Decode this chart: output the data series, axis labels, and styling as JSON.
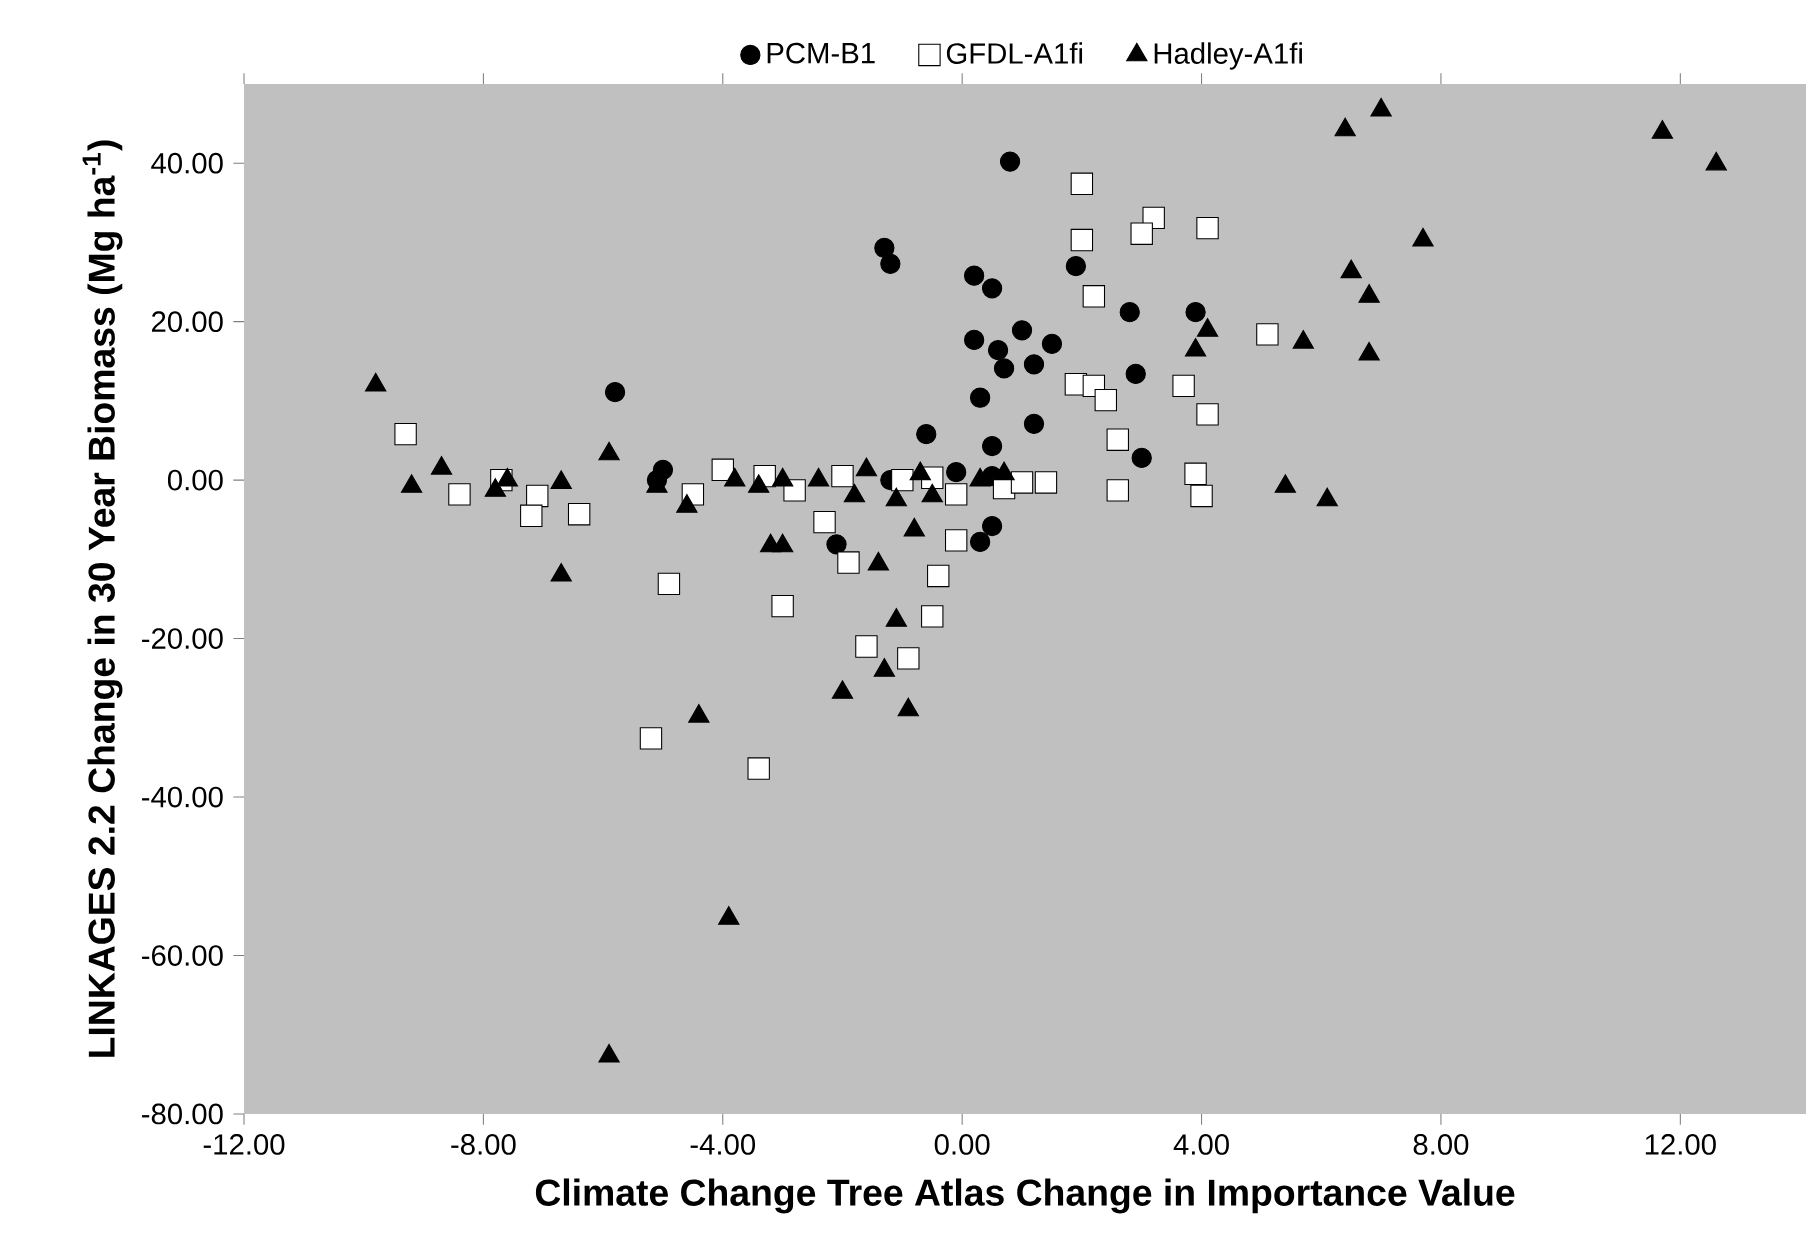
{
  "chart_data": {
    "type": "scatter",
    "xlabel": "Climate Change Tree Atlas Change in Importance Value",
    "ylabel": "LINKAGES 2.2 Change in 30 Year Biomass (Mg ha$^{-1}$)",
    "xlim": [
      -12,
      14.1
    ],
    "ylim": [
      -80,
      50
    ],
    "xticks": [
      {
        "value": -12,
        "label": "-12.00"
      },
      {
        "value": -8,
        "label": "-8.00"
      },
      {
        "value": -4,
        "label": "-4.00"
      },
      {
        "value": 0,
        "label": "0.00"
      },
      {
        "value": 4,
        "label": "4.00"
      },
      {
        "value": 8,
        "label": "8.00"
      },
      {
        "value": 12,
        "label": "12.00"
      }
    ],
    "yticks": [
      {
        "value": -80,
        "label": "-80.00"
      },
      {
        "value": -60,
        "label": "-60.00"
      },
      {
        "value": -40,
        "label": "-40.00"
      },
      {
        "value": -20,
        "label": "-20.00"
      },
      {
        "value": 0,
        "label": "0.00"
      },
      {
        "value": 20,
        "label": "20.00"
      },
      {
        "value": 40,
        "label": "40.00"
      }
    ],
    "grid": false,
    "legend": "top",
    "series": [
      {
        "name": "PCM-B1",
        "color": "#000000",
        "marker": "circle",
        "x": [
          -5.8,
          -5.0,
          -5.1,
          -1.3,
          -1.2,
          0.8,
          0.2,
          0.5,
          0.2,
          0.6,
          0.7,
          1.0,
          1.5,
          1.2,
          0.3,
          1.2,
          -0.6,
          0.5,
          1.9,
          2.8,
          3.9,
          2.9,
          3.0,
          0.5,
          0.3,
          -2.1,
          -0.1,
          0.5,
          -1.2
        ],
        "values": [
          11.1,
          1.3,
          0.0,
          29.3,
          27.3,
          40.2,
          25.8,
          24.2,
          17.7,
          16.4,
          14.1,
          18.9,
          17.2,
          14.6,
          10.4,
          7.1,
          5.8,
          4.3,
          27.0,
          21.2,
          21.2,
          13.4,
          2.8,
          -5.8,
          -7.8,
          -8.1,
          1.0,
          0.5,
          0.0
        ]
      },
      {
        "name": "GFDL-A1fi",
        "color": "#ffffff",
        "marker": "square",
        "x": [
          -9.3,
          -8.4,
          -7.7,
          -7.1,
          -7.2,
          -6.4,
          -4.5,
          -4.0,
          -4.9,
          -3.3,
          -2.8,
          -2.3,
          -1.9,
          -0.1,
          0.7,
          1.4,
          1.0,
          -0.1,
          -0.4,
          -3.0,
          2.0,
          2.0,
          2.2,
          1.9,
          2.2,
          2.4,
          3.2,
          3.0,
          4.1,
          5.1,
          3.7,
          4.1,
          2.6,
          3.9,
          4.0,
          2.6,
          -0.5,
          -1.6,
          -0.9,
          -5.2,
          -3.4,
          -1.0,
          -2.0,
          -0.5
        ],
        "values": [
          5.8,
          -1.8,
          0.0,
          -2.0,
          -4.5,
          -4.3,
          -1.8,
          1.3,
          -13.1,
          0.5,
          -1.3,
          -5.3,
          -10.4,
          -1.8,
          -1.0,
          -0.3,
          -0.3,
          -7.6,
          -12.1,
          -15.9,
          37.4,
          30.3,
          23.2,
          12.1,
          11.9,
          10.1,
          33.1,
          31.1,
          31.8,
          18.4,
          11.9,
          8.3,
          5.1,
          0.8,
          -2.0,
          -1.3,
          -17.2,
          -21.0,
          -22.5,
          -32.6,
          -36.4,
          0.0,
          0.5,
          0.3
        ]
      },
      {
        "name": "Hadley-A1fi",
        "color": "#000000",
        "marker": "triangle",
        "x": [
          -9.8,
          -8.7,
          -9.2,
          -7.8,
          -7.6,
          -6.7,
          -5.9,
          -6.7,
          -5.1,
          -4.6,
          -3.8,
          -4.4,
          -3.9,
          -5.9,
          -2.0,
          -1.4,
          -1.1,
          -1.3,
          -0.9,
          -3.0,
          -3.2,
          -0.8,
          -3.4,
          -3.0,
          -2.4,
          -1.8,
          -1.1,
          -0.5,
          -1.6,
          0.3,
          0.7,
          -0.7,
          7.0,
          6.4,
          11.7,
          12.6,
          7.7,
          6.5,
          6.8,
          4.1,
          3.9,
          5.7,
          6.8,
          5.4,
          6.1
        ],
        "values": [
          12.0,
          1.5,
          -0.8,
          -1.3,
          0.0,
          -0.3,
          3.3,
          -12.0,
          -0.8,
          -3.3,
          0.0,
          -29.8,
          -55.3,
          -72.7,
          -26.8,
          -10.6,
          -17.7,
          -24.0,
          -29.0,
          -8.3,
          -8.3,
          -6.3,
          -0.8,
          0.0,
          0.0,
          -2.0,
          -2.5,
          -2.0,
          1.3,
          0.0,
          0.8,
          0.8,
          46.7,
          44.2,
          43.9,
          39.9,
          30.3,
          26.3,
          23.2,
          18.9,
          16.4,
          17.4,
          15.9,
          -0.8,
          -2.5
        ]
      }
    ]
  }
}
